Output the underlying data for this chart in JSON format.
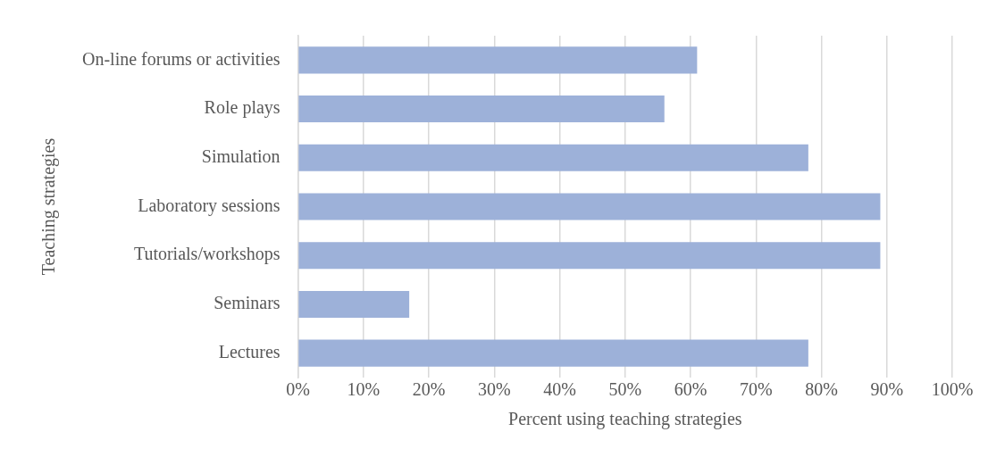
{
  "chart_data": {
    "type": "bar",
    "orientation": "horizontal",
    "xlabel": "Percent using teaching strategies",
    "ylabel": "Teaching strategies",
    "categories": [
      "On-line forums or activities",
      "Role plays",
      "Simulation",
      "Laboratory sessions",
      "Tutorials/workshops",
      "Seminars",
      "Lectures"
    ],
    "values": [
      61,
      56,
      78,
      89,
      89,
      17,
      78
    ],
    "color": "#9db1d9",
    "xlim": [
      0,
      100
    ],
    "xticks": [
      {
        "value": 0,
        "label": "0%"
      },
      {
        "value": 10,
        "label": "10%"
      },
      {
        "value": 20,
        "label": "20%"
      },
      {
        "value": 30,
        "label": "30%"
      },
      {
        "value": 40,
        "label": "40%"
      },
      {
        "value": 50,
        "label": "50%"
      },
      {
        "value": 60,
        "label": "60%"
      },
      {
        "value": 70,
        "label": "70%"
      },
      {
        "value": 80,
        "label": "80%"
      },
      {
        "value": 90,
        "label": "90%"
      },
      {
        "value": 100,
        "label": "100%"
      }
    ],
    "grid": "x",
    "legend": false
  }
}
